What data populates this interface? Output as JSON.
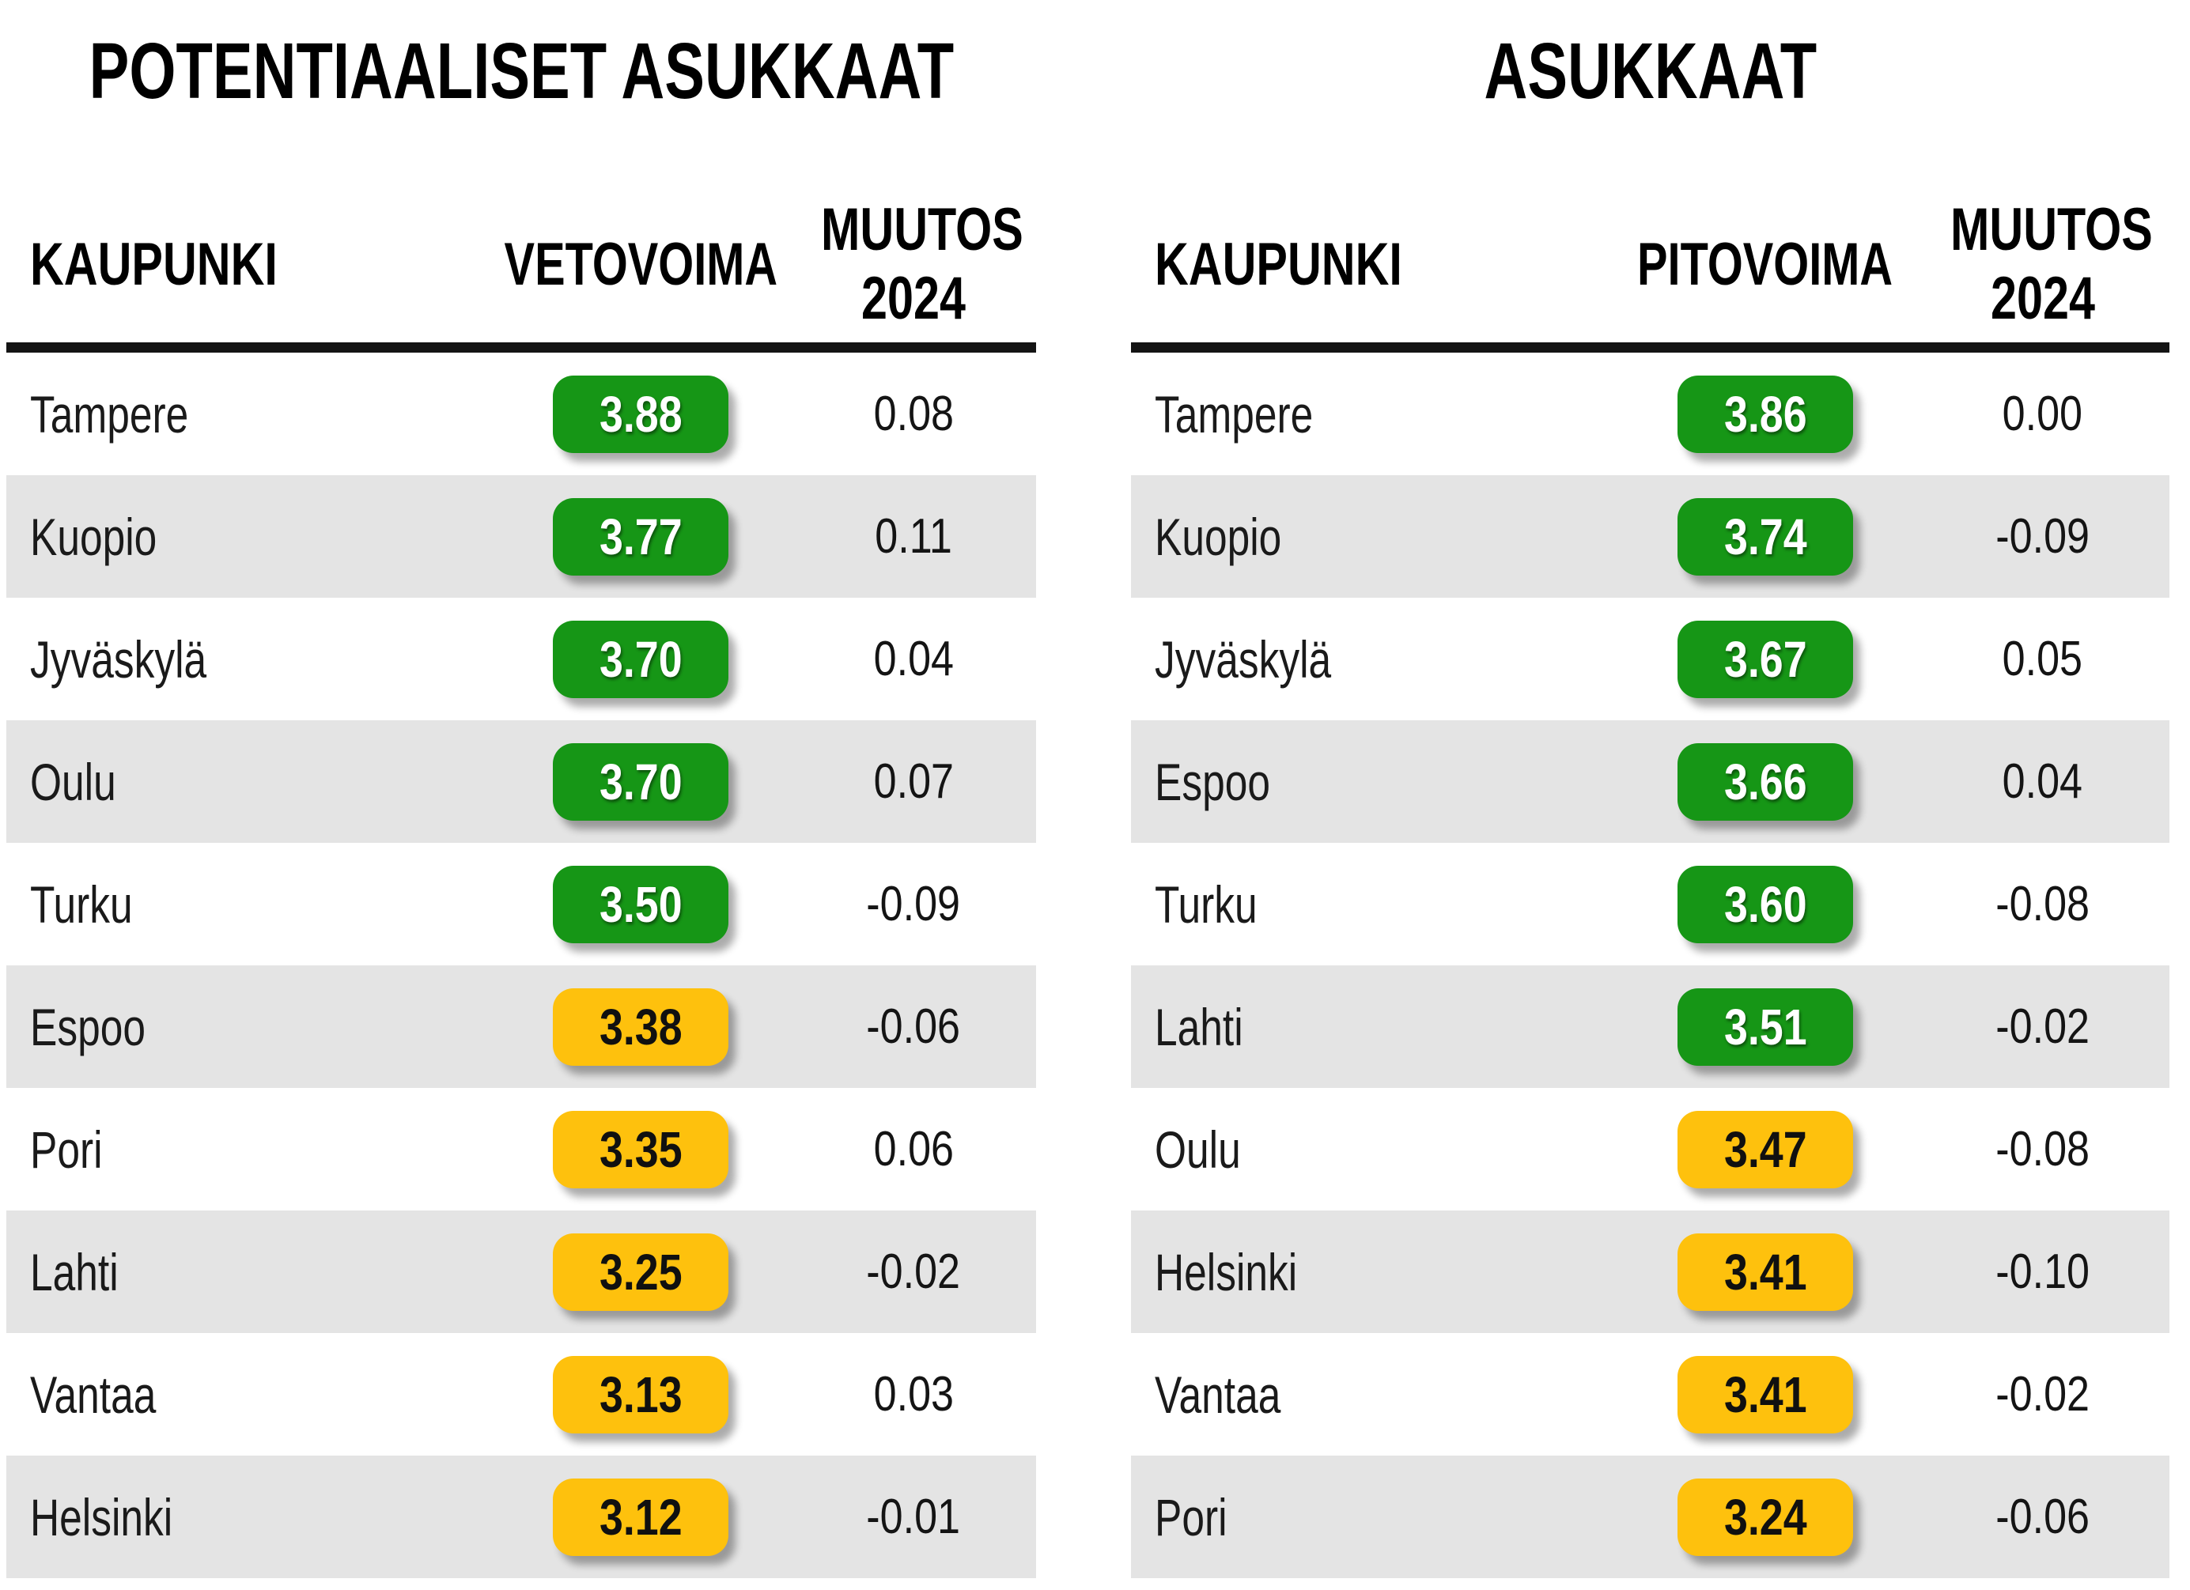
{
  "colors": {
    "badge_green": "#169616",
    "badge_yellow": "#fec10d",
    "row_alt": "#e4e4e4",
    "rule": "#141414"
  },
  "chart_data": [
    {
      "type": "table",
      "title": "POTENTIAALISET ASUKKAAT",
      "columns": {
        "city": "KAUPUNKI",
        "score": "VETOVOIMA",
        "change": "MUUTOS 2024"
      },
      "rows": [
        {
          "city": "Tampere",
          "score": "3.88",
          "change": "0.08",
          "level": "green"
        },
        {
          "city": "Kuopio",
          "score": "3.77",
          "change": "0.11",
          "level": "green"
        },
        {
          "city": "Jyväskylä",
          "score": "3.70",
          "change": "0.04",
          "level": "green"
        },
        {
          "city": "Oulu",
          "score": "3.70",
          "change": "0.07",
          "level": "green"
        },
        {
          "city": "Turku",
          "score": "3.50",
          "change": "-0.09",
          "level": "green"
        },
        {
          "city": "Espoo",
          "score": "3.38",
          "change": "-0.06",
          "level": "yellow"
        },
        {
          "city": "Pori",
          "score": "3.35",
          "change": "0.06",
          "level": "yellow"
        },
        {
          "city": "Lahti",
          "score": "3.25",
          "change": "-0.02",
          "level": "yellow"
        },
        {
          "city": "Vantaa",
          "score": "3.13",
          "change": "0.03",
          "level": "yellow"
        },
        {
          "city": "Helsinki",
          "score": "3.12",
          "change": "-0.01",
          "level": "yellow"
        }
      ]
    },
    {
      "type": "table",
      "title": "ASUKKAAT",
      "columns": {
        "city": "KAUPUNKI",
        "score": "PITOVOIMA",
        "change": "MUUTOS 2024"
      },
      "rows": [
        {
          "city": "Tampere",
          "score": "3.86",
          "change": "0.00",
          "level": "green"
        },
        {
          "city": "Kuopio",
          "score": "3.74",
          "change": "-0.09",
          "level": "green"
        },
        {
          "city": "Jyväskylä",
          "score": "3.67",
          "change": "0.05",
          "level": "green"
        },
        {
          "city": "Espoo",
          "score": "3.66",
          "change": "0.04",
          "level": "green"
        },
        {
          "city": "Turku",
          "score": "3.60",
          "change": "-0.08",
          "level": "green"
        },
        {
          "city": "Lahti",
          "score": "3.51",
          "change": "-0.02",
          "level": "green"
        },
        {
          "city": "Oulu",
          "score": "3.47",
          "change": "-0.08",
          "level": "yellow"
        },
        {
          "city": "Helsinki",
          "score": "3.41",
          "change": "-0.10",
          "level": "yellow"
        },
        {
          "city": "Vantaa",
          "score": "3.41",
          "change": "-0.02",
          "level": "yellow"
        },
        {
          "city": "Pori",
          "score": "3.24",
          "change": "-0.06",
          "level": "yellow"
        }
      ]
    }
  ]
}
